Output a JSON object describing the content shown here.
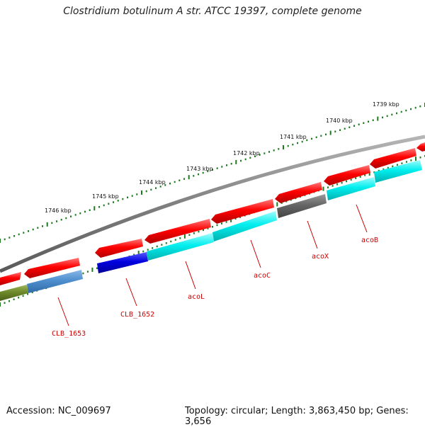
{
  "title": "Clostridium botulinum A str. ATCC 19397, complete genome",
  "footer": {
    "accession": "Accession: NC_009697",
    "summary": "Topology: circular; Length: 3,863,450 bp; Genes: 3,656"
  },
  "colors": {
    "backbone": "#7f7f7f",
    "ticks": "#1e7a1e",
    "cds": "#ff0000",
    "label": "#cc0000"
  },
  "ticks": [
    {
      "label": "1746 kbp"
    },
    {
      "label": "1745 kbp"
    },
    {
      "label": "1744 kbp"
    },
    {
      "label": "1743 kbp"
    },
    {
      "label": "1742 kbp"
    },
    {
      "label": "1741 kbp"
    },
    {
      "label": "1740 kbp"
    },
    {
      "label": "1739 kbp"
    }
  ],
  "genes": [
    {
      "name": "CLB_1653",
      "color": "#4f8fcf"
    },
    {
      "name": "CLB_1652",
      "color": "#0000e0"
    },
    {
      "name": "acoL",
      "color": "#00f0f0"
    },
    {
      "name": "acoC",
      "color": "#00e8e8"
    },
    {
      "name": "acoX",
      "color": "#666666"
    },
    {
      "name": "acoB",
      "color": "#00e8e8"
    }
  ]
}
